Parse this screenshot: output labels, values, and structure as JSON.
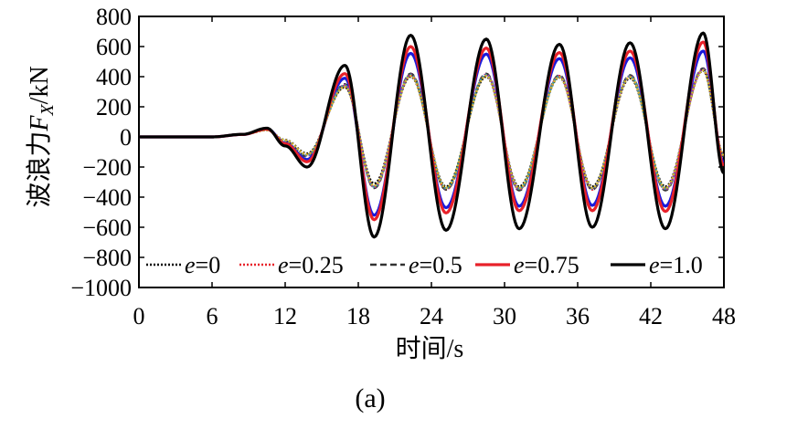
{
  "chart_data": {
    "type": "line",
    "xlabel": "时间/s",
    "ylabel_prefix": "波浪力",
    "ylabel_symbol": "F",
    "ylabel_subscript": "X",
    "ylabel_unit": "/kN",
    "xlim": [
      0,
      48
    ],
    "ylim": [
      -1000,
      800
    ],
    "xticks": [
      0,
      6,
      12,
      18,
      24,
      30,
      36,
      42,
      48
    ],
    "xtick_labels": [
      "0",
      "6",
      "12",
      "18",
      "24",
      "30",
      "36",
      "42",
      "48"
    ],
    "yticks": [
      800,
      600,
      400,
      200,
      0,
      -200,
      -400,
      -600,
      -800,
      -1000
    ],
    "ytick_labels": [
      "800",
      "600",
      "400",
      "200",
      "0",
      "−200",
      "−400",
      "−600",
      "−800",
      "−1000"
    ],
    "caption": "(a)",
    "legend_position": "bottom-inside",
    "legend_var": "e",
    "series": [
      {
        "name": "e=0",
        "value": "=0",
        "color": "#000000",
        "dash": "dotted",
        "x": [
          0,
          6,
          8.5,
          10.5,
          12,
          13.8,
          16.9,
          19.3,
          22.3,
          25.2,
          28.5,
          31.2,
          34.5,
          37.2,
          40.3,
          43.2,
          46.3,
          48
        ],
        "y": [
          0,
          0,
          15,
          45,
          -20,
          -110,
          330,
          -310,
          400,
          -330,
          400,
          -330,
          395,
          -330,
          390,
          -330,
          440,
          -120
        ]
      },
      {
        "name": "e=0.25",
        "value": "=0.25",
        "color": "#e8212a",
        "dash": "dotted",
        "x": [
          0,
          6,
          8.5,
          10.5,
          12,
          13.8,
          16.9,
          19.3,
          22.3,
          25.2,
          28.5,
          31.2,
          34.5,
          37.2,
          40.3,
          43.2,
          46.3,
          48
        ],
        "y": [
          0,
          0,
          15,
          46,
          -25,
          -120,
          340,
          -330,
          410,
          -350,
          410,
          -350,
          405,
          -350,
          400,
          -350,
          450,
          -125
        ]
      },
      {
        "name": "e=0.5",
        "value": "=0.5",
        "color": "#333333",
        "dash": "dashed",
        "x": [
          0,
          6,
          8.5,
          10.5,
          12,
          13.8,
          16.9,
          19.3,
          22.3,
          25.2,
          28.5,
          31.2,
          34.5,
          37.2,
          40.3,
          43.2,
          46.3,
          48
        ],
        "y": [
          0,
          0,
          15,
          48,
          -30,
          -130,
          350,
          -340,
          420,
          -350,
          420,
          -355,
          410,
          -350,
          410,
          -355,
          455,
          -130
        ]
      },
      {
        "name": "e=0.75",
        "value": "=0.75",
        "color": "#e8212a",
        "dash": "solid",
        "x": [
          0,
          6,
          8.5,
          10.5,
          12,
          13.8,
          16.9,
          19.3,
          22.3,
          25.2,
          28.5,
          31.2,
          34.5,
          37.2,
          40.3,
          43.2,
          46.3,
          48
        ],
        "y": [
          0,
          0,
          16,
          52,
          -45,
          -165,
          420,
          -550,
          600,
          -505,
          590,
          -490,
          560,
          -490,
          570,
          -495,
          630,
          -190
        ]
      },
      {
        "name": "e=1.0",
        "value": "=1.0",
        "color": "#000000",
        "dash": "solid",
        "x": [
          0,
          6,
          8.5,
          10.5,
          12,
          13.8,
          16.9,
          19.3,
          22.3,
          25.2,
          28.5,
          31.2,
          34.5,
          37.2,
          40.3,
          43.2,
          46.3,
          48
        ],
        "y": [
          0,
          0,
          17,
          58,
          -60,
          -200,
          475,
          -665,
          675,
          -620,
          650,
          -610,
          615,
          -600,
          625,
          -610,
          690,
          -240
        ]
      }
    ],
    "unlabeled_series": [
      {
        "name": "blue",
        "color": "#1a1adb",
        "dash": "solid",
        "x": [
          0,
          6,
          8.5,
          10.5,
          12,
          13.8,
          16.9,
          19.3,
          22.3,
          25.2,
          28.5,
          31.2,
          34.5,
          37.2,
          40.3,
          43.2,
          46.3,
          48
        ],
        "y": [
          0,
          0,
          16,
          54,
          -40,
          -150,
          390,
          -520,
          555,
          -470,
          550,
          -460,
          520,
          -455,
          525,
          -460,
          570,
          -170
        ]
      },
      {
        "name": "purple",
        "color": "#a03ca0",
        "dash": "dotted",
        "x": [
          0,
          6,
          8.5,
          10.5,
          12,
          13.8,
          16.9,
          19.3,
          22.3,
          25.2,
          28.5,
          31.2,
          34.5,
          37.2,
          40.3,
          43.2,
          46.3,
          48
        ],
        "y": [
          0,
          0,
          15,
          47,
          -28,
          -125,
          345,
          -335,
          415,
          -345,
          415,
          -348,
          405,
          -345,
          405,
          -348,
          450,
          -128
        ]
      },
      {
        "name": "teal",
        "color": "#3a9a9a",
        "dash": "dotted",
        "x": [
          0,
          6,
          8.5,
          10.5,
          12,
          13.8,
          16.9,
          19.3,
          22.3,
          25.2,
          28.5,
          31.2,
          34.5,
          37.2,
          40.3,
          43.2,
          46.3,
          48
        ],
        "y": [
          0,
          0,
          15,
          46,
          -26,
          -122,
          342,
          -332,
          412,
          -342,
          412,
          -345,
          402,
          -342,
          402,
          -345,
          445,
          -126
        ]
      },
      {
        "name": "yellow",
        "color": "#d6b32a",
        "dash": "dotted",
        "x": [
          0,
          6,
          8.5,
          10.5,
          12,
          13.8,
          16.9,
          19.3,
          22.3,
          25.2,
          28.5,
          31.2,
          34.5,
          37.2,
          40.3,
          43.2,
          46.3,
          48
        ],
        "y": [
          0,
          0,
          15,
          45,
          -22,
          -115,
          332,
          -325,
          405,
          -338,
          405,
          -340,
          398,
          -338,
          398,
          -340,
          442,
          -122
        ]
      }
    ]
  }
}
